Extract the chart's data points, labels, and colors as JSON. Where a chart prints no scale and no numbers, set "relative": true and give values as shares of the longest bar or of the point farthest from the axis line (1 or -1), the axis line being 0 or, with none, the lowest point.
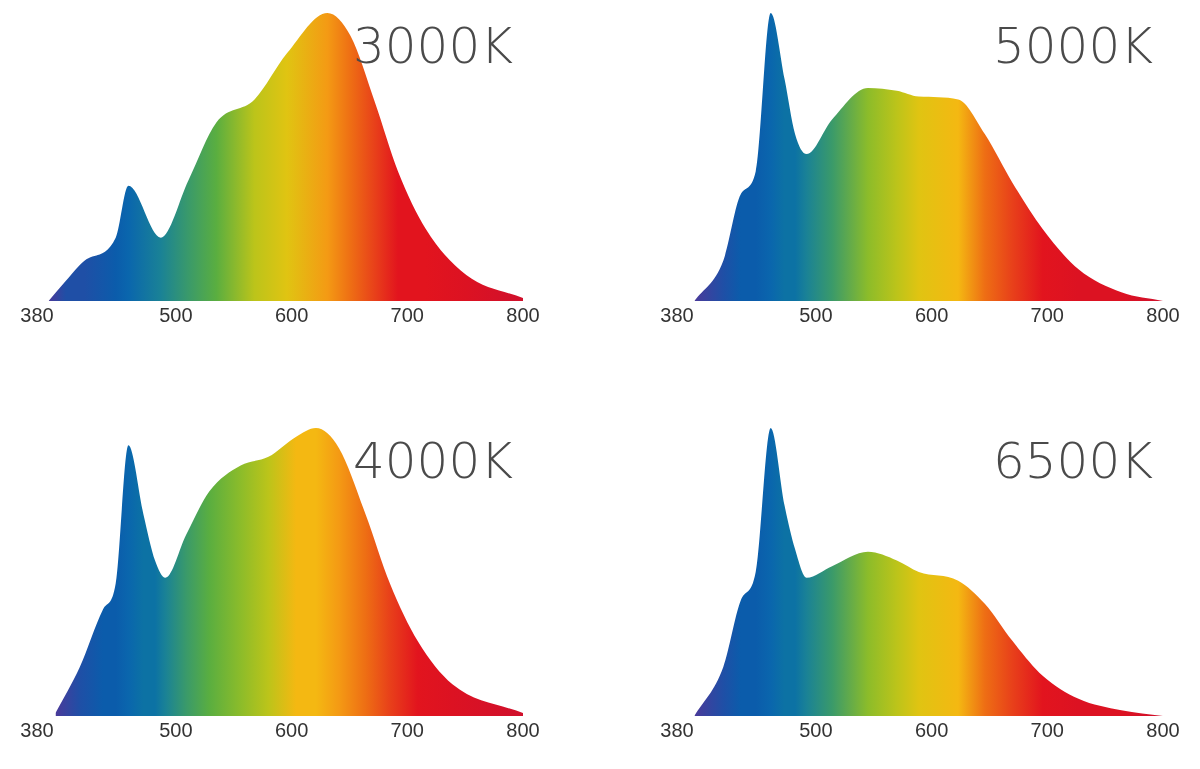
{
  "chart_data": [
    {
      "type": "area",
      "title": "3000K",
      "relative": true,
      "tick_labels": "x",
      "xlim": [
        380,
        800
      ],
      "xticks": [
        380,
        500,
        600,
        700,
        800
      ],
      "x": [
        390,
        405,
        421,
        448,
        459,
        487,
        511,
        535,
        568,
        596,
        631,
        651,
        672,
        692,
        716,
        751,
        800
      ],
      "values": [
        0,
        0.07,
        0.14,
        0.22,
        0.4,
        0.22,
        0.42,
        0.62,
        0.7,
        0.86,
        1.0,
        0.92,
        0.69,
        0.45,
        0.25,
        0.09,
        0.01
      ],
      "colors": [
        "#4a3a9a",
        "#1f4fa6",
        "#1f4fa6",
        "#0b5cab",
        "#0a66ad",
        "#1a8296",
        "#3a9a6a",
        "#5aae40",
        "#bcc41a",
        "#e0c412",
        "#f49a14",
        "#ee6e14",
        "#e8401a",
        "#e2141e",
        "#e2141e",
        "#dc1222",
        "#d0102c"
      ]
    },
    {
      "type": "area",
      "title": "5000K",
      "relative": true,
      "tick_labels": "x",
      "xlim": [
        380,
        800
      ],
      "xticks": [
        380,
        500,
        600,
        700,
        800
      ],
      "x": [
        395,
        420,
        435,
        448,
        461,
        473,
        482,
        492,
        514,
        545,
        570,
        589,
        623,
        646,
        670,
        696,
        727,
        764,
        800
      ],
      "values": [
        0,
        0.14,
        0.37,
        0.45,
        1.0,
        0.77,
        0.58,
        0.51,
        0.63,
        0.74,
        0.73,
        0.71,
        0.7,
        0.58,
        0.41,
        0.25,
        0.11,
        0.03,
        0
      ],
      "colors": [
        "#4a3a9a",
        "#1f4fa6",
        "#0b5cab",
        "#0b5cab",
        "#0a66ad",
        "#0c72a4",
        "#0c72a4",
        "#1a8296",
        "#3a9a6a",
        "#8cbc2a",
        "#bcc41a",
        "#e0c412",
        "#f4b812",
        "#ee6e14",
        "#e8401a",
        "#e2141e",
        "#dc1222",
        "#dc1222",
        "#d0102c"
      ]
    },
    {
      "type": "area",
      "title": "4000K",
      "relative": true,
      "tick_labels": "x",
      "xlim": [
        380,
        800
      ],
      "xticks": [
        380,
        500,
        600,
        700,
        800
      ],
      "x": [
        396,
        417,
        437,
        448,
        459,
        472,
        482,
        491,
        509,
        529,
        556,
        580,
        604,
        621,
        641,
        664,
        685,
        709,
        739,
        800
      ],
      "values": [
        0.01,
        0.17,
        0.37,
        0.46,
        0.94,
        0.7,
        0.54,
        0.48,
        0.63,
        0.78,
        0.87,
        0.9,
        0.97,
        1.0,
        0.93,
        0.7,
        0.46,
        0.26,
        0.11,
        0.01
      ],
      "colors": [
        "#4a3a9a",
        "#1f4fa6",
        "#0b5cab",
        "#0b5cab",
        "#0a66ad",
        "#0c72a4",
        "#0c72a4",
        "#1a8296",
        "#3a9a6a",
        "#5aae40",
        "#8cbc2a",
        "#bcc41a",
        "#f4b812",
        "#f4b812",
        "#f49a14",
        "#ee6e14",
        "#e8401a",
        "#e2141e",
        "#dc1222",
        "#d0102c"
      ]
    },
    {
      "type": "area",
      "title": "6500K",
      "relative": true,
      "tick_labels": "x",
      "xlim": [
        380,
        800
      ],
      "xticks": [
        380,
        500,
        600,
        700,
        800
      ],
      "x": [
        395,
        420,
        435,
        448,
        461,
        473,
        482,
        492,
        514,
        545,
        570,
        589,
        623,
        646,
        670,
        696,
        727,
        764,
        800
      ],
      "values": [
        0,
        0.17,
        0.4,
        0.5,
        1.0,
        0.73,
        0.58,
        0.48,
        0.52,
        0.57,
        0.54,
        0.5,
        0.47,
        0.39,
        0.26,
        0.14,
        0.06,
        0.02,
        0
      ],
      "colors": [
        "#4a3a9a",
        "#1f4fa6",
        "#0b5cab",
        "#0b5cab",
        "#0a66ad",
        "#0c72a4",
        "#0c72a4",
        "#1a8296",
        "#3a9a6a",
        "#8cbc2a",
        "#bcc41a",
        "#e0c412",
        "#f4b812",
        "#ee6e14",
        "#e8401a",
        "#e2141e",
        "#dc1222",
        "#dc1222",
        "#d0102c"
      ]
    }
  ]
}
